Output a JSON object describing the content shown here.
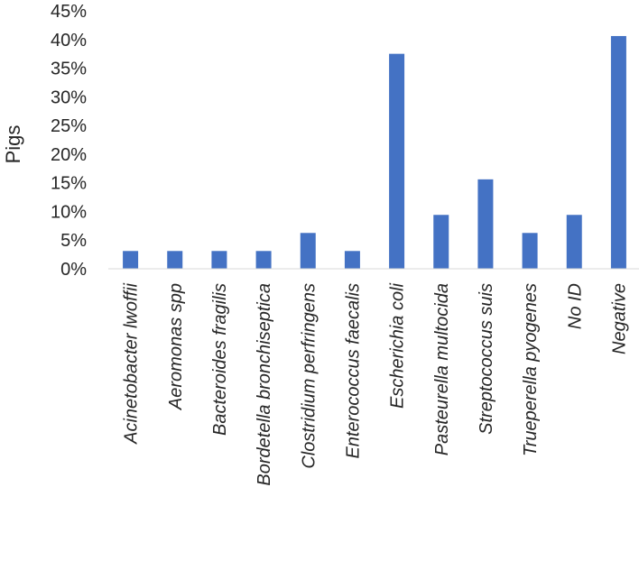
{
  "chart_data": {
    "type": "bar",
    "title": "",
    "xlabel": "",
    "ylabel": "Pigs",
    "ylim": [
      0,
      45
    ],
    "yticks": [
      "0%",
      "5%",
      "10%",
      "15%",
      "20%",
      "25%",
      "30%",
      "35%",
      "40%",
      "45%"
    ],
    "grid": false,
    "legend": "none",
    "categories": [
      "Acinetobacter lwoffii",
      "Aeromonas spp",
      "Bacteroides fragilis",
      "Bordetella bronchiseptica",
      "Clostridium perfringens",
      "Enterococcus faecalis",
      "Escherichia coli",
      "Pasteurella multocida",
      "Streptococcus suis",
      "Trueperella pyogenes",
      "No ID",
      "Negative"
    ],
    "values": [
      3.1,
      3.1,
      3.1,
      3.1,
      6.25,
      3.1,
      37.5,
      9.4,
      15.6,
      6.25,
      9.4,
      40.6
    ],
    "bar_color": "#4472C4"
  }
}
